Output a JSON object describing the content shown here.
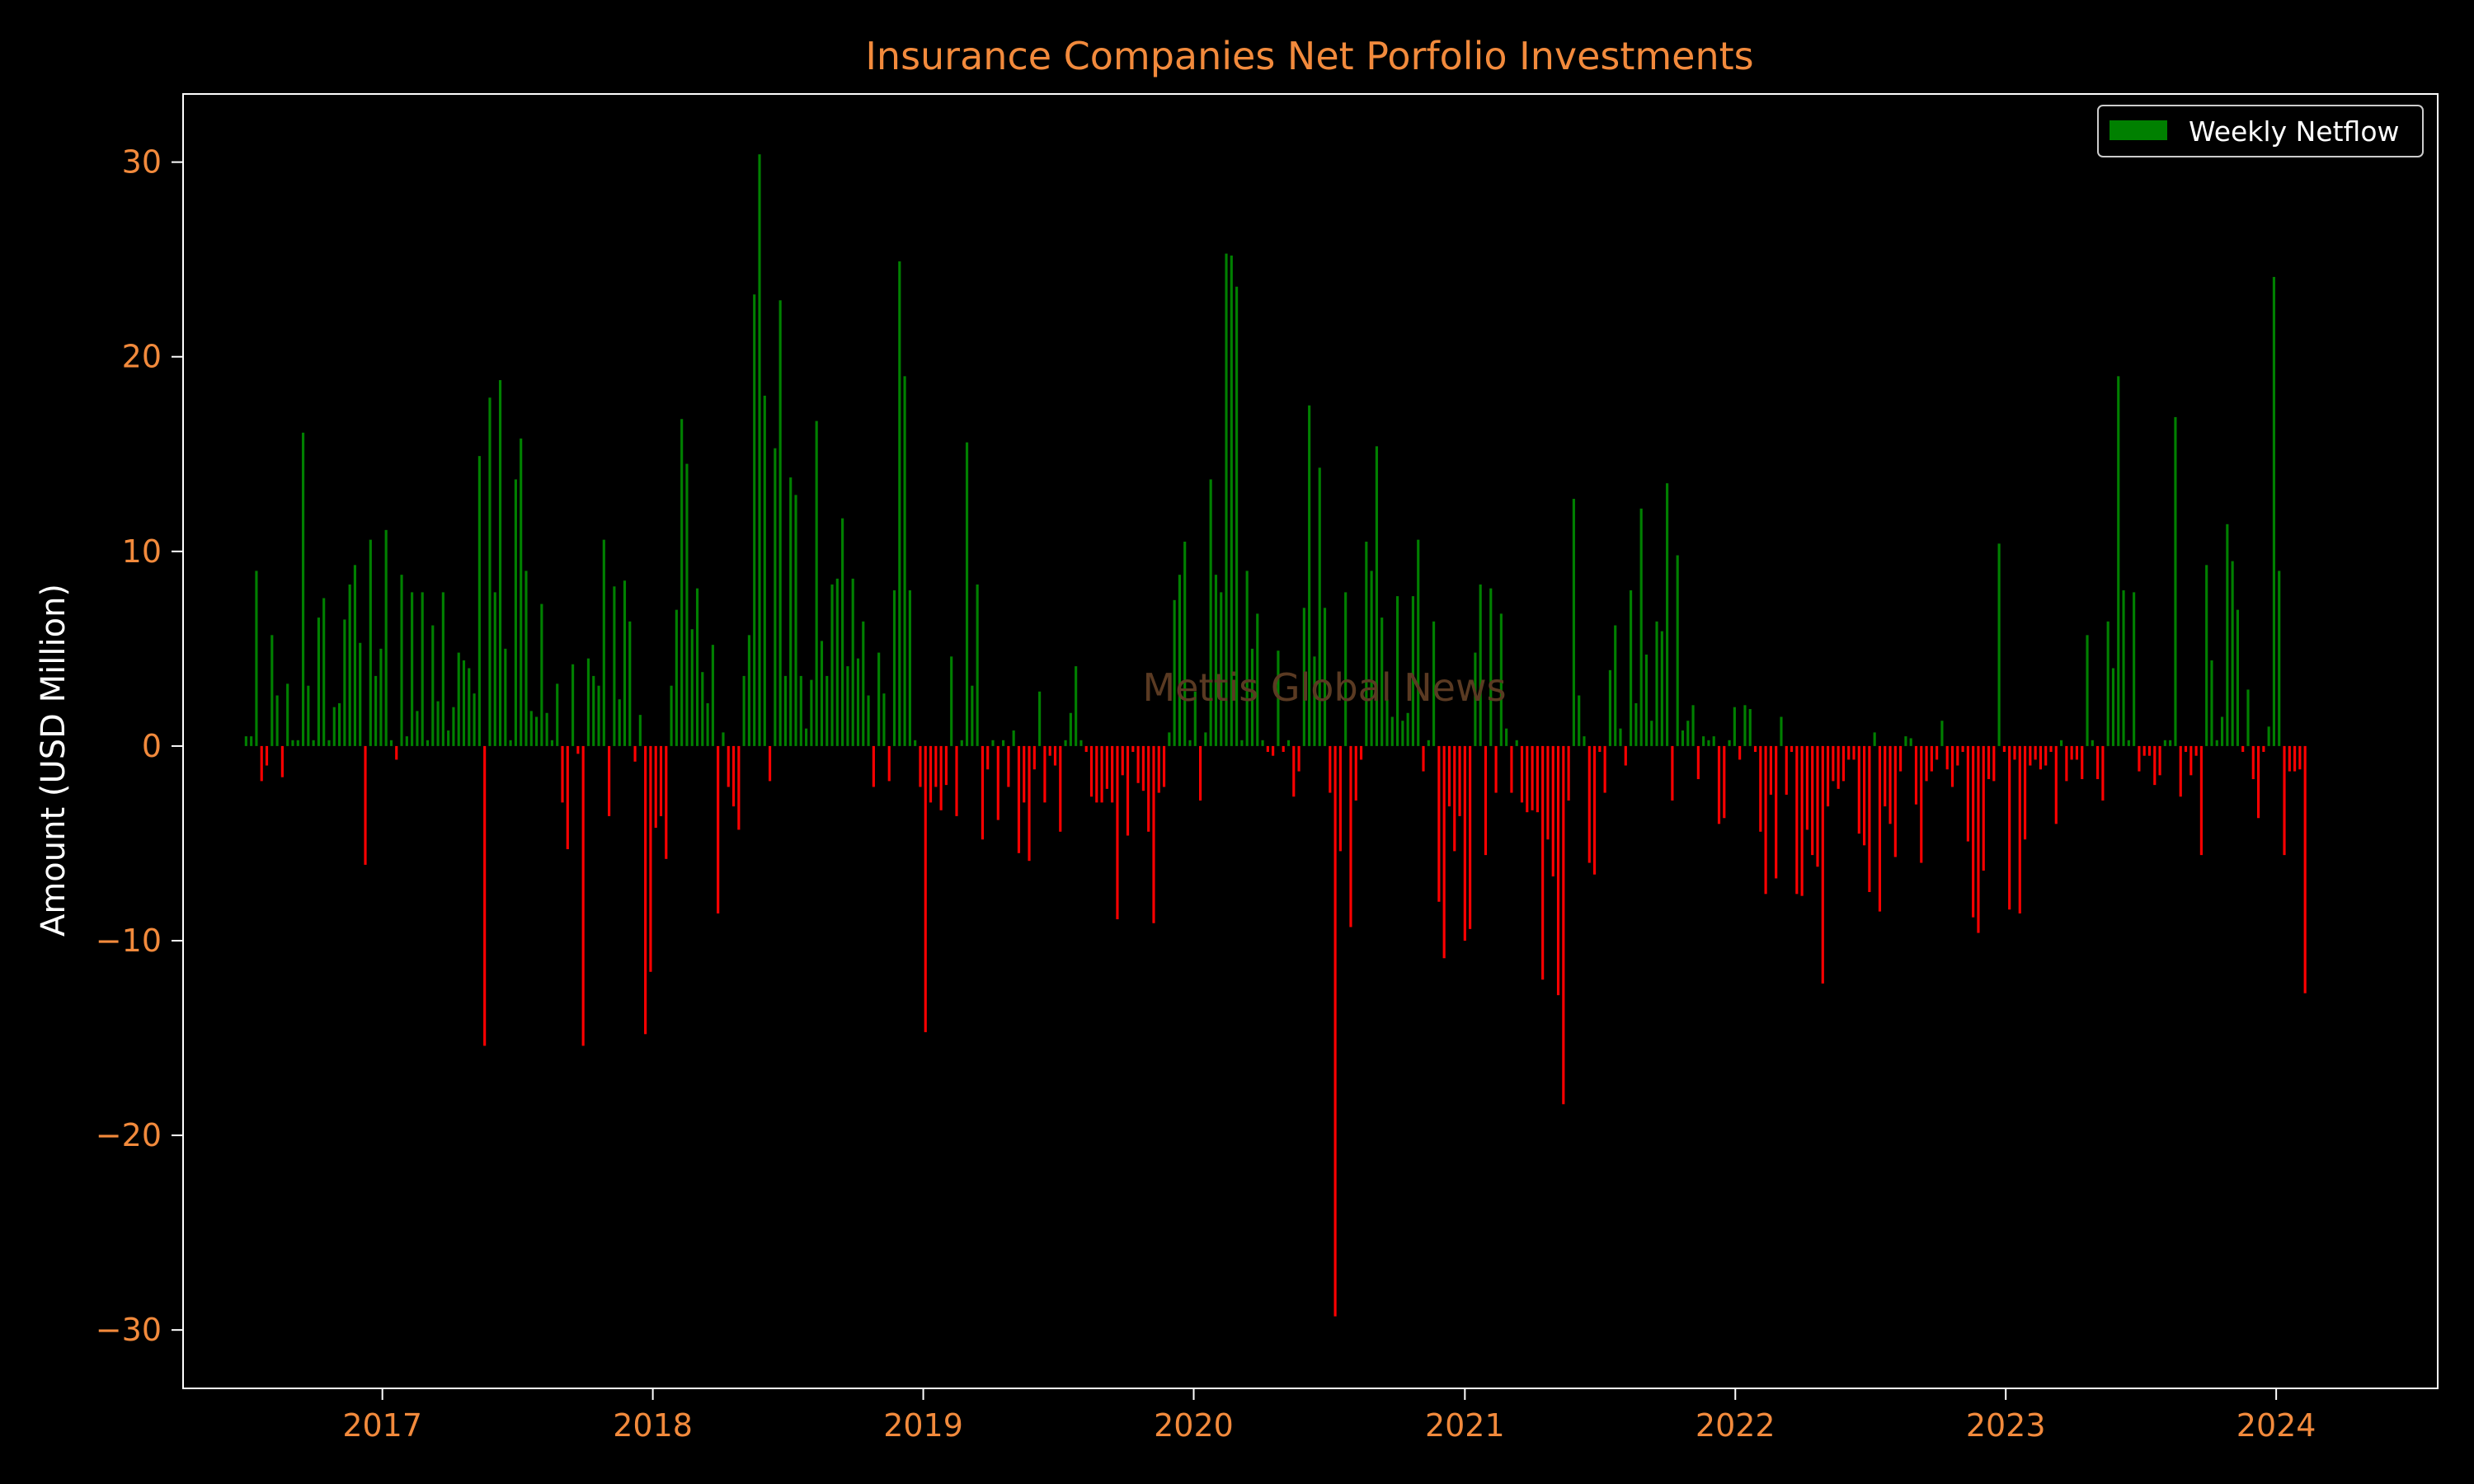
{
  "chart_data": {
    "type": "bar",
    "title": "Insurance Companies Net Porfolio Investments",
    "xlabel": "",
    "ylabel": "Amount (USD Million)",
    "xlim": [
      "2016-04-07",
      "2024-08-06"
    ],
    "ylim": [
      -33,
      33.5
    ],
    "y_ticks": [
      -30,
      -20,
      -10,
      0,
      10,
      20,
      30
    ],
    "x_ticks": [
      "2017",
      "2018",
      "2019",
      "2020",
      "2021",
      "2022",
      "2023",
      "2024"
    ],
    "grid": false,
    "legend": {
      "position": "top-right",
      "entries": [
        "Weekly Netflow"
      ]
    },
    "watermark": "Mettis Global News",
    "colors": {
      "background": "#000000",
      "positive": "#008000",
      "negative": "#ff0000",
      "title": "#f28a3c",
      "ticks": "#f28a3c",
      "axis_label": "#ffffff",
      "spine": "#ffffff",
      "legend_text": "#ffffff",
      "watermark": "#5a3a22"
    },
    "series": [
      {
        "name": "Weekly Netflow",
        "start_date": "2016-07-01",
        "interval_days": 7,
        "values": [
          0.5,
          0.5,
          9.0,
          -1.8,
          -1.0,
          5.7,
          2.6,
          -1.6,
          3.2,
          0.3,
          0.3,
          16.1,
          3.1,
          0.3,
          6.6,
          7.6,
          0.3,
          2.0,
          2.2,
          6.5,
          8.3,
          9.3,
          5.3,
          -6.1,
          10.6,
          3.6,
          5.0,
          11.1,
          0.3,
          -0.7,
          8.8,
          0.5,
          7.9,
          1.8,
          7.9,
          0.3,
          6.2,
          2.3,
          7.9,
          0.8,
          2.0,
          4.8,
          4.4,
          4.0,
          2.7,
          14.9,
          -15.4,
          17.9,
          7.9,
          18.8,
          5.0,
          0.3,
          13.7,
          15.8,
          9.0,
          1.8,
          1.5,
          7.3,
          1.7,
          0.3,
          3.2,
          -2.9,
          -5.3,
          4.2,
          -0.4,
          -15.4,
          4.5,
          3.6,
          3.1,
          10.6,
          -3.6,
          8.2,
          2.4,
          8.5,
          6.4,
          -0.8,
          1.6,
          -14.8,
          -11.6,
          -4.2,
          -3.6,
          -5.8,
          3.1,
          7.0,
          16.8,
          14.5,
          6.0,
          8.1,
          3.8,
          2.2,
          5.2,
          -8.6,
          0.7,
          -2.1,
          -3.1,
          -4.3,
          3.6,
          5.7,
          23.2,
          30.4,
          18.0,
          -1.8,
          15.3,
          22.9,
          3.6,
          13.8,
          12.9,
          3.6,
          0.9,
          3.4,
          16.7,
          5.4,
          3.6,
          8.3,
          8.6,
          11.7,
          4.1,
          8.6,
          4.5,
          6.4,
          2.6,
          -2.1,
          4.8,
          2.7,
          -1.8,
          8.0,
          24.9,
          19.0,
          8.0,
          0.3,
          -2.1,
          -14.7,
          -2.9,
          -2.1,
          -3.3,
          -2.0,
          4.6,
          -3.6,
          0.3,
          15.6,
          3.1,
          8.3,
          -4.8,
          -1.2,
          0.3,
          -3.8,
          0.3,
          -2.1,
          0.8,
          -5.5,
          -2.9,
          -5.9,
          -1.2,
          2.8,
          -2.9,
          -0.5,
          -1.0,
          -4.4,
          0.3,
          1.7,
          4.1,
          0.3,
          -0.3,
          -2.6,
          -2.9,
          -2.9,
          -2.2,
          -2.9,
          -8.9,
          -1.5,
          -4.6,
          -0.3,
          -1.9,
          -2.3,
          -4.4,
          -9.1,
          -2.4,
          -2.1,
          0.7,
          7.5,
          8.8,
          10.5,
          0.3,
          2.8,
          -2.8,
          0.7,
          13.7,
          8.8,
          7.9,
          25.3,
          25.2,
          23.6,
          0.3,
          9.0,
          5.0,
          6.8,
          0.3,
          -0.3,
          -0.5,
          4.9,
          -0.3,
          0.3,
          -2.6,
          -1.3,
          7.1,
          17.5,
          4.6,
          14.3,
          7.1,
          -2.4,
          -29.3,
          -5.4,
          7.9,
          -9.3,
          -2.8,
          -0.7,
          10.5,
          9.0,
          15.4,
          6.6,
          2.4,
          1.5,
          7.7,
          1.3,
          1.7,
          7.7,
          10.6,
          -1.3,
          0.3,
          6.4,
          -8.0,
          -10.9,
          -3.1,
          -5.4,
          -3.6,
          -10.0,
          -9.4,
          4.8,
          8.3,
          -5.6,
          8.1,
          -2.4,
          6.8,
          0.9,
          -2.4,
          0.3,
          -2.9,
          -3.4,
          -3.3,
          -3.4,
          -12.0,
          -4.8,
          -6.7,
          -12.8,
          -18.4,
          -2.8,
          12.7,
          2.6,
          0.5,
          -6.0,
          -6.6,
          -0.3,
          -2.4,
          3.9,
          6.2,
          0.9,
          -1.0,
          8.0,
          2.2,
          12.2,
          4.7,
          1.3,
          6.4,
          5.9,
          13.5,
          -2.8,
          9.8,
          0.8,
          1.3,
          2.1,
          -1.7,
          0.5,
          0.3,
          0.5,
          -4.0,
          -3.7,
          0.3,
          2.0,
          -0.7,
          2.1,
          1.9,
          -0.3,
          -4.4,
          -7.6,
          -2.5,
          -6.8,
          1.5,
          -2.5,
          -0.3,
          -7.6,
          -7.7,
          -4.3,
          -5.6,
          -6.2,
          -12.2,
          -3.1,
          -1.8,
          -2.2,
          -1.8,
          -0.7,
          -0.7,
          -4.5,
          -5.1,
          -7.5,
          0.7,
          -8.5,
          -3.1,
          -4.0,
          -5.7,
          -1.3,
          0.5,
          0.4,
          -3.0,
          -6.0,
          -1.8,
          -1.3,
          -0.7,
          1.3,
          -1.2,
          -2.1,
          -1.0,
          -0.3,
          -4.9,
          -8.8,
          -9.6,
          -6.4,
          -1.7,
          -1.8,
          10.4,
          -0.3,
          -8.4,
          -0.7,
          -8.6,
          -4.8,
          -1.0,
          -0.7,
          -1.2,
          -1.0,
          -0.3,
          -4.0,
          0.3,
          -1.8,
          -0.7,
          -0.7,
          -1.7,
          5.7,
          0.3,
          -1.7,
          -2.8,
          6.4,
          4.0,
          19.0,
          8.0,
          0.3,
          7.9,
          -1.3,
          -0.5,
          -0.5,
          -2.0,
          -1.5,
          0.3,
          0.3,
          16.9,
          -2.6,
          -0.3,
          -1.5,
          -0.5,
          -5.6,
          9.3,
          4.4,
          0.3,
          1.5,
          11.4,
          9.5,
          7.0,
          -0.3,
          2.9,
          -1.7,
          -3.7,
          -0.3,
          1.0,
          24.1,
          9.0,
          -5.6,
          -1.3,
          -1.3,
          -1.2,
          -12.7
        ]
      }
    ]
  }
}
